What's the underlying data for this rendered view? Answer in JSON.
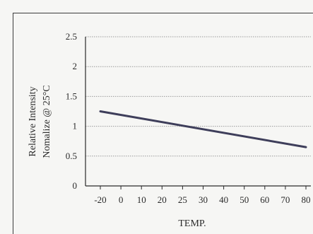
{
  "chart_data": {
    "type": "line",
    "title": "",
    "ylabel_line1": "Relative Intensity",
    "ylabel_line2": "Nomalize @ 25°C",
    "xlabel": "TEMP.",
    "x_ticks": [
      "-20",
      "0",
      "10",
      "20",
      "25",
      "30",
      "40",
      "50",
      "60",
      "70",
      "80"
    ],
    "y_ticks": [
      "0",
      "0.5",
      "1",
      "1.5",
      "2",
      "2.5"
    ],
    "ylim": [
      0,
      2.5
    ],
    "grid": true,
    "series": [
      {
        "x": [
          "-20",
          "80"
        ],
        "y": [
          1.25,
          0.65
        ]
      }
    ],
    "colors": {
      "line": "#3e3e5a",
      "grid": "#9a9a9a",
      "axis": "#2a2a2a"
    }
  }
}
